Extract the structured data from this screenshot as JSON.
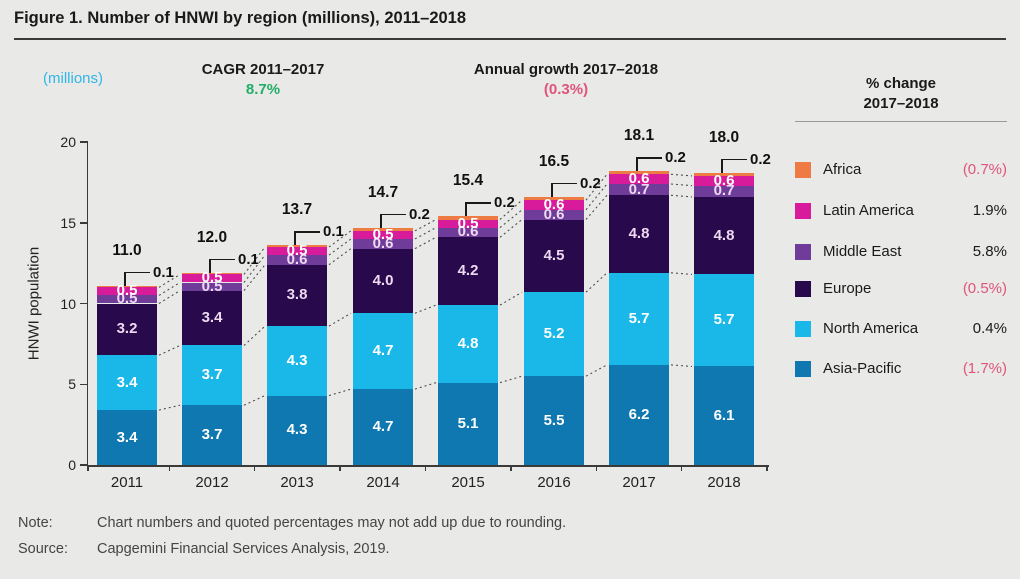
{
  "header": {
    "title": "Figure 1. Number of HNWI by region (millions), 2011–2018",
    "units_label": "(millions)",
    "cagr": {
      "label": "CAGR 2011–2017",
      "value": "8.7%"
    },
    "annual_growth": {
      "label": "Annual growth 2017–2018",
      "value": "(0.3%)"
    }
  },
  "legend": {
    "header_line1": "% change",
    "header_line2": "2017–2018"
  },
  "chart_data": {
    "type": "bar",
    "stacked": true,
    "title": "Number of HNWI by region (millions)",
    "categories": [
      "2011",
      "2012",
      "2013",
      "2014",
      "2015",
      "2016",
      "2017",
      "2018"
    ],
    "series": [
      {
        "name": "Asia-Pacific",
        "color": "#0f78b1",
        "label_color": "#ffffff",
        "values": [
          3.4,
          3.7,
          4.3,
          4.7,
          5.1,
          5.5,
          6.2,
          6.1
        ],
        "pct_change_2017_2018": "(1.7%)"
      },
      {
        "name": "North America",
        "color": "#1ab8e8",
        "label_color": "#ffffff",
        "values": [
          3.4,
          3.7,
          4.3,
          4.7,
          4.8,
          5.2,
          5.7,
          5.7
        ],
        "pct_change_2017_2018": "0.4%"
      },
      {
        "name": "Europe",
        "color": "#280a4c",
        "label_color": "#ecdaf0",
        "values": [
          3.2,
          3.4,
          3.8,
          4.0,
          4.2,
          4.5,
          4.8,
          4.8
        ],
        "pct_change_2017_2018": "(0.5%)"
      },
      {
        "name": "Middle East",
        "color": "#6f3d99",
        "label_color": "#ecdaf0",
        "values": [
          0.5,
          0.5,
          0.6,
          0.6,
          0.6,
          0.6,
          0.7,
          0.7
        ],
        "pct_change_2017_2018": "5.8%"
      },
      {
        "name": "Latin America",
        "color": "#d81b9a",
        "label_color": "#ffffff",
        "values": [
          0.5,
          0.5,
          0.5,
          0.5,
          0.5,
          0.6,
          0.6,
          0.6
        ],
        "pct_change_2017_2018": "1.9%"
      },
      {
        "name": "Africa",
        "color": "#ee7b43",
        "label_color": "#111111",
        "values": [
          0.1,
          0.1,
          0.1,
          0.2,
          0.2,
          0.2,
          0.2,
          0.2
        ],
        "pct_change_2017_2018": "(0.7%)"
      }
    ],
    "totals": [
      "11.0",
      "12.0",
      "13.7",
      "14.7",
      "15.4",
      "16.5",
      "18.1",
      "18.0"
    ],
    "callout_series": "Africa",
    "xlabel": "",
    "ylabel": "HNWI population",
    "yticks": [
      0,
      5,
      10,
      15,
      20
    ],
    "ylim": [
      0,
      20
    ],
    "grid": false,
    "legend_position": "right"
  },
  "colors": {
    "green": "#22ad66",
    "pink": "#e0547d",
    "cyan": "#2fb7e9",
    "axis": "#3a3a3a"
  },
  "footer": {
    "note_label": "Note:",
    "note_text": "Chart numbers and quoted percentages may not add up due to rounding.",
    "source_label": "Source:",
    "source_text": "Capgemini Financial Services Analysis, 2019."
  }
}
